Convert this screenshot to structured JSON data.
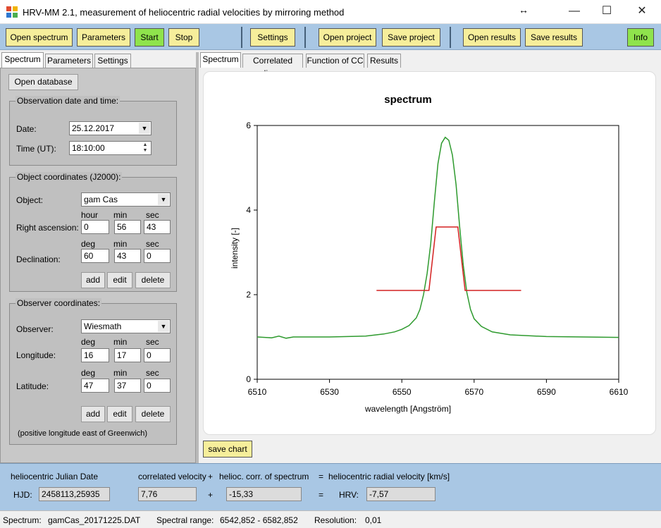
{
  "window": {
    "title": "HRV-MM 2.1,   measurement of heliocentric radial velocities by mirroring method",
    "resize_glyph": "↔",
    "min_glyph": "—",
    "max_glyph": "☐",
    "close_glyph": "✕"
  },
  "toolbar": {
    "open_spectrum": "Open spectrum",
    "parameters": "Parameters",
    "start": "Start",
    "stop": "Stop",
    "settings": "Settings",
    "open_project": "Open project",
    "save_project": "Save project",
    "open_results": "Open results",
    "save_results": "Save results",
    "info": "Info"
  },
  "left_tabs": [
    "Spectrum",
    "Parameters",
    "Settings"
  ],
  "open_database": "Open database",
  "observation": {
    "title": "Observation date and time:",
    "date_label": "Date:",
    "date_value": "25.12.2017",
    "time_label": "Time (UT):",
    "time_value": "18:10:00"
  },
  "object": {
    "title": "Object coordinates (J2000):",
    "object_label": "Object:",
    "object_value": "gam Cas",
    "ra_label": "Right ascension:",
    "ra_headers": [
      "hour",
      "min",
      "sec"
    ],
    "ra_values": [
      "0",
      "56",
      "43"
    ],
    "dec_label": "Declination:",
    "dec_headers": [
      "deg",
      "min",
      "sec"
    ],
    "dec_values": [
      "60",
      "43",
      "0"
    ],
    "add": "add",
    "edit": "edit",
    "delete": "delete"
  },
  "observer": {
    "title": "Observer coordinates:",
    "observer_label": "Observer:",
    "observer_value": "Wiesmath",
    "lon_label": "Longitude:",
    "lon_headers": [
      "deg",
      "min",
      "sec"
    ],
    "lon_values": [
      "16",
      "17",
      "0"
    ],
    "lat_label": "Latitude:",
    "lat_headers": [
      "deg",
      "min",
      "sec"
    ],
    "lat_values": [
      "47",
      "37",
      "0"
    ],
    "add": "add",
    "edit": "edit",
    "delete": "delete",
    "note": "(positive longitude east of Greenwich)"
  },
  "right_tabs": [
    "Spectrum",
    "Correlated lines",
    "Function of CC",
    "Results"
  ],
  "save_chart": "save chart",
  "chart_data": {
    "type": "line",
    "title": "spectrum",
    "xlabel": "wavelength [Angström]",
    "ylabel": "intensity [-]",
    "xlim": [
      6510,
      6610
    ],
    "ylim": [
      0,
      6
    ],
    "xticks": [
      6510,
      6530,
      6550,
      6570,
      6590,
      6610
    ],
    "yticks": [
      0,
      2,
      4,
      6
    ],
    "colors": {
      "spectrum": "#2e9a2e",
      "mirror": "#d42020"
    },
    "series": [
      {
        "x": [
          6510,
          6514,
          6516,
          6518,
          6520,
          6530,
          6540,
          6545,
          6548,
          6550,
          6552,
          6554,
          6555,
          6556,
          6557,
          6558,
          6559,
          6560,
          6561,
          6562,
          6563,
          6564,
          6565,
          6566,
          6567,
          6568,
          6569,
          6570,
          6572,
          6575,
          6580,
          6590,
          6600,
          6610
        ],
        "y": [
          1.0,
          0.98,
          1.02,
          0.97,
          1.0,
          1.0,
          1.02,
          1.07,
          1.12,
          1.18,
          1.27,
          1.45,
          1.65,
          2.0,
          2.5,
          3.2,
          4.2,
          5.1,
          5.58,
          5.72,
          5.65,
          5.3,
          4.6,
          3.6,
          2.7,
          2.05,
          1.65,
          1.43,
          1.25,
          1.12,
          1.05,
          1.01,
          1.0,
          0.99
        ]
      },
      {
        "x": [
          6543,
          6557.5,
          6559.5,
          6565.5,
          6567.5,
          6583
        ],
        "y": [
          2.1,
          2.1,
          3.6,
          3.6,
          2.1,
          2.1
        ]
      }
    ]
  },
  "bottom": {
    "hjd_caption": "heliocentric Julian Date",
    "corr_caption": "correlated velocity",
    "plus1": "+",
    "helioc_caption": "helioc. corr. of spectrum",
    "eq1": "=",
    "hrv_caption": "heliocentric radial velocity [km/s]",
    "hjd_label": "HJD:",
    "hjd_value": "2458113,25935",
    "corr_value": "7,76",
    "plus2": "+",
    "helioc_value": "-15,33",
    "eq2": "=",
    "hrv_label": "HRV:",
    "hrv_value": "-7,57"
  },
  "status": {
    "spectrum_label": "Spectrum:",
    "spectrum_value": "gamCas_20171225.DAT",
    "range_label": "Spectral range:",
    "range_value": "6542,852 - 6582,852",
    "res_label": "Resolution:",
    "res_value": "0,01"
  }
}
